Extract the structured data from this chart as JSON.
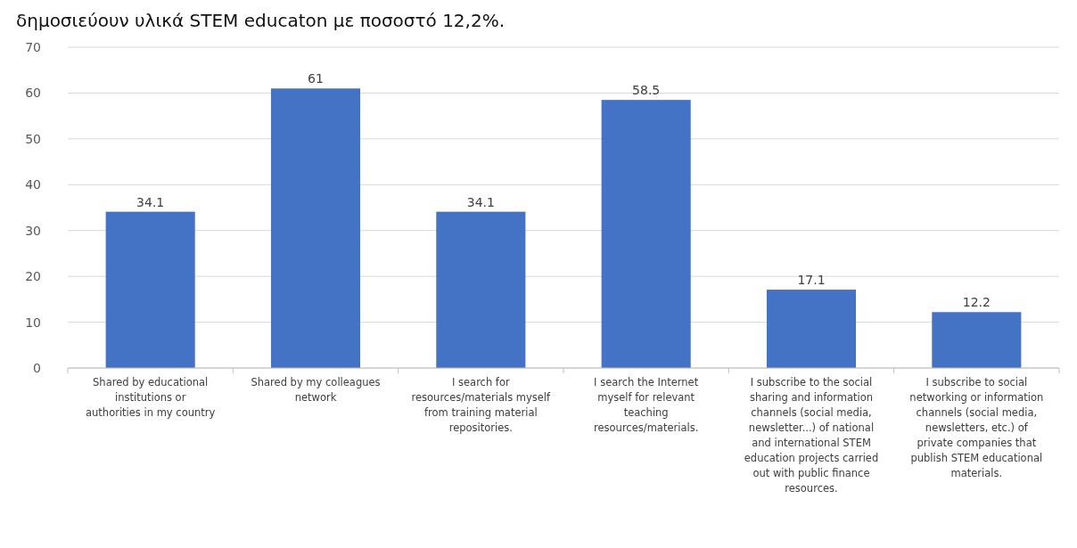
{
  "chart_data": {
    "type": "bar",
    "annotations": [
      "δημοσιεύουν υλικά STEM educaton με ποσοστό 12,2%."
    ],
    "categories": [
      "Shared by educational institutions or authorities in my country",
      "Shared by my colleagues network",
      "I search for resources/materials myself from training material repositories.",
      "I search the Internet myself for relevant teaching resources/materials.",
      "I subscribe to the social sharing and information channels (social media, newsletter...) of national and international STEM education projects carried out with public finance resources.",
      "I subscribe to social networking or information channels (social media, newsletters, etc.) of private companies that publish STEM educational materials."
    ],
    "values": [
      34.1,
      61,
      34.1,
      58.5,
      17.1,
      12.2
    ],
    "color": "#4472c4",
    "ylim": [
      0,
      70
    ],
    "yticks": [
      0,
      10,
      20,
      30,
      40,
      50,
      60,
      70
    ],
    "grid": "y",
    "data_labels": true
  }
}
